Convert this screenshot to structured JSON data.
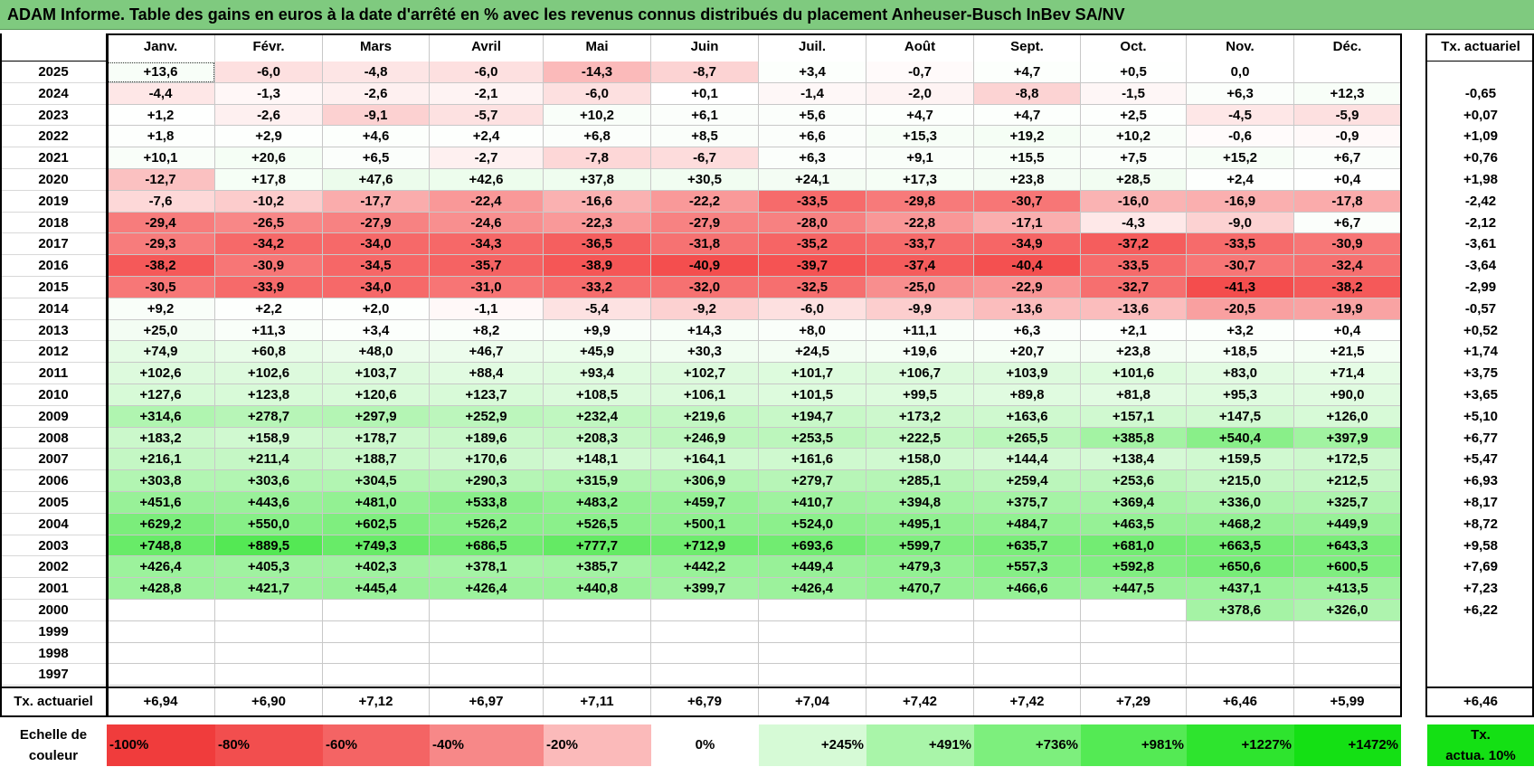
{
  "title": "ADAM Informe. Table des gains en euros à la date d'arrêté en % avec les revenus connus distribués du placement Anheuser-Busch InBev SA/NV",
  "months": [
    "Janv.",
    "Févr.",
    "Mars",
    "Avril",
    "Mai",
    "Juin",
    "Juil.",
    "Août",
    "Sept.",
    "Oct.",
    "Nov.",
    "Déc."
  ],
  "annual_header": "Tx. actuariel",
  "rows": [
    {
      "year": "2025",
      "values": [
        "+13,6",
        "-6,0",
        "-4,8",
        "-6,0",
        "-14,3",
        "-8,7",
        "+3,4",
        "-0,7",
        "+4,7",
        "+0,5",
        "0,0",
        ""
      ],
      "annual": ""
    },
    {
      "year": "2024",
      "values": [
        "-4,4",
        "-1,3",
        "-2,6",
        "-2,1",
        "-6,0",
        "+0,1",
        "-1,4",
        "-2,0",
        "-8,8",
        "-1,5",
        "+6,3",
        "+12,3"
      ],
      "annual": "-0,65"
    },
    {
      "year": "2023",
      "values": [
        "+1,2",
        "-2,6",
        "-9,1",
        "-5,7",
        "+10,2",
        "+6,1",
        "+5,6",
        "+4,7",
        "+4,7",
        "+2,5",
        "-4,5",
        "-5,9"
      ],
      "annual": "+0,07"
    },
    {
      "year": "2022",
      "values": [
        "+1,8",
        "+2,9",
        "+4,6",
        "+2,4",
        "+6,8",
        "+8,5",
        "+6,6",
        "+15,3",
        "+19,2",
        "+10,2",
        "-0,6",
        "-0,9"
      ],
      "annual": "+1,09"
    },
    {
      "year": "2021",
      "values": [
        "+10,1",
        "+20,6",
        "+6,5",
        "-2,7",
        "-7,8",
        "-6,7",
        "+6,3",
        "+9,1",
        "+15,5",
        "+7,5",
        "+15,2",
        "+6,7"
      ],
      "annual": "+0,76"
    },
    {
      "year": "2020",
      "values": [
        "-12,7",
        "+17,8",
        "+47,6",
        "+42,6",
        "+37,8",
        "+30,5",
        "+24,1",
        "+17,3",
        "+23,8",
        "+28,5",
        "+2,4",
        "+0,4"
      ],
      "annual": "+1,98"
    },
    {
      "year": "2019",
      "values": [
        "-7,6",
        "-10,2",
        "-17,7",
        "-22,4",
        "-16,6",
        "-22,2",
        "-33,5",
        "-29,8",
        "-30,7",
        "-16,0",
        "-16,9",
        "-17,8"
      ],
      "annual": "-2,42"
    },
    {
      "year": "2018",
      "values": [
        "-29,4",
        "-26,5",
        "-27,9",
        "-24,6",
        "-22,3",
        "-27,9",
        "-28,0",
        "-22,8",
        "-17,1",
        "-4,3",
        "-9,0",
        "+6,7"
      ],
      "annual": "-2,12"
    },
    {
      "year": "2017",
      "values": [
        "-29,3",
        "-34,2",
        "-34,0",
        "-34,3",
        "-36,5",
        "-31,8",
        "-35,2",
        "-33,7",
        "-34,9",
        "-37,2",
        "-33,5",
        "-30,9"
      ],
      "annual": "-3,61"
    },
    {
      "year": "2016",
      "values": [
        "-38,2",
        "-30,9",
        "-34,5",
        "-35,7",
        "-38,9",
        "-40,9",
        "-39,7",
        "-37,4",
        "-40,4",
        "-33,5",
        "-30,7",
        "-32,4"
      ],
      "annual": "-3,64"
    },
    {
      "year": "2015",
      "values": [
        "-30,5",
        "-33,9",
        "-34,0",
        "-31,0",
        "-33,2",
        "-32,0",
        "-32,5",
        "-25,0",
        "-22,9",
        "-32,7",
        "-41,3",
        "-38,2"
      ],
      "annual": "-2,99"
    },
    {
      "year": "2014",
      "values": [
        "+9,2",
        "+2,2",
        "+2,0",
        "-1,1",
        "-5,4",
        "-9,2",
        "-6,0",
        "-9,9",
        "-13,6",
        "-13,6",
        "-20,5",
        "-19,9"
      ],
      "annual": "-0,57"
    },
    {
      "year": "2013",
      "values": [
        "+25,0",
        "+11,3",
        "+3,4",
        "+8,2",
        "+9,9",
        "+14,3",
        "+8,0",
        "+11,1",
        "+6,3",
        "+2,1",
        "+3,2",
        "+0,4"
      ],
      "annual": "+0,52"
    },
    {
      "year": "2012",
      "values": [
        "+74,9",
        "+60,8",
        "+48,0",
        "+46,7",
        "+45,9",
        "+30,3",
        "+24,5",
        "+19,6",
        "+20,7",
        "+23,8",
        "+18,5",
        "+21,5"
      ],
      "annual": "+1,74"
    },
    {
      "year": "2011",
      "values": [
        "+102,6",
        "+102,6",
        "+103,7",
        "+88,4",
        "+93,4",
        "+102,7",
        "+101,7",
        "+106,7",
        "+103,9",
        "+101,6",
        "+83,0",
        "+71,4"
      ],
      "annual": "+3,75"
    },
    {
      "year": "2010",
      "values": [
        "+127,6",
        "+123,8",
        "+120,6",
        "+123,7",
        "+108,5",
        "+106,1",
        "+101,5",
        "+99,5",
        "+89,8",
        "+81,8",
        "+95,3",
        "+90,0"
      ],
      "annual": "+3,65"
    },
    {
      "year": "2009",
      "values": [
        "+314,6",
        "+278,7",
        "+297,9",
        "+252,9",
        "+232,4",
        "+219,6",
        "+194,7",
        "+173,2",
        "+163,6",
        "+157,1",
        "+147,5",
        "+126,0"
      ],
      "annual": "+5,10"
    },
    {
      "year": "2008",
      "values": [
        "+183,2",
        "+158,9",
        "+178,7",
        "+189,6",
        "+208,3",
        "+246,9",
        "+253,5",
        "+222,5",
        "+265,5",
        "+385,8",
        "+540,4",
        "+397,9"
      ],
      "annual": "+6,77"
    },
    {
      "year": "2007",
      "values": [
        "+216,1",
        "+211,4",
        "+188,7",
        "+170,6",
        "+148,1",
        "+164,1",
        "+161,6",
        "+158,0",
        "+144,4",
        "+138,4",
        "+159,5",
        "+172,5"
      ],
      "annual": "+5,47"
    },
    {
      "year": "2006",
      "values": [
        "+303,8",
        "+303,6",
        "+304,5",
        "+290,3",
        "+315,9",
        "+306,9",
        "+279,7",
        "+285,1",
        "+259,4",
        "+253,6",
        "+215,0",
        "+212,5"
      ],
      "annual": "+6,93"
    },
    {
      "year": "2005",
      "values": [
        "+451,6",
        "+443,6",
        "+481,0",
        "+533,8",
        "+483,2",
        "+459,7",
        "+410,7",
        "+394,8",
        "+375,7",
        "+369,4",
        "+336,0",
        "+325,7"
      ],
      "annual": "+8,17"
    },
    {
      "year": "2004",
      "values": [
        "+629,2",
        "+550,0",
        "+602,5",
        "+526,2",
        "+526,5",
        "+500,1",
        "+524,0",
        "+495,1",
        "+484,7",
        "+463,5",
        "+468,2",
        "+449,9"
      ],
      "annual": "+8,72"
    },
    {
      "year": "2003",
      "values": [
        "+748,8",
        "+889,5",
        "+749,3",
        "+686,5",
        "+777,7",
        "+712,9",
        "+693,6",
        "+599,7",
        "+635,7",
        "+681,0",
        "+663,5",
        "+643,3"
      ],
      "annual": "+9,58"
    },
    {
      "year": "2002",
      "values": [
        "+426,4",
        "+405,3",
        "+402,3",
        "+378,1",
        "+385,7",
        "+442,2",
        "+449,4",
        "+479,3",
        "+557,3",
        "+592,8",
        "+650,6",
        "+600,5"
      ],
      "annual": "+7,69"
    },
    {
      "year": "2001",
      "values": [
        "+428,8",
        "+421,7",
        "+445,4",
        "+426,4",
        "+440,8",
        "+399,7",
        "+426,4",
        "+470,7",
        "+466,6",
        "+447,5",
        "+437,1",
        "+413,5"
      ],
      "annual": "+7,23"
    },
    {
      "year": "2000",
      "values": [
        "",
        "",
        "",
        "",
        "",
        "",
        "",
        "",
        "",
        "",
        "+378,6",
        "+326,0"
      ],
      "annual": "+6,22"
    },
    {
      "year": "1999",
      "values": [
        "",
        "",
        "",
        "",
        "",
        "",
        "",
        "",
        "",
        "",
        "",
        ""
      ],
      "annual": ""
    },
    {
      "year": "1998",
      "values": [
        "",
        "",
        "",
        "",
        "",
        "",
        "",
        "",
        "",
        "",
        "",
        ""
      ],
      "annual": ""
    },
    {
      "year": "1997",
      "values": [
        "",
        "",
        "",
        "",
        "",
        "",
        "",
        "",
        "",
        "",
        "",
        ""
      ],
      "annual": ""
    }
  ],
  "footer": {
    "label": "Tx. actuariel",
    "values": [
      "+6,94",
      "+6,90",
      "+7,12",
      "+6,97",
      "+7,11",
      "+6,79",
      "+7,04",
      "+7,42",
      "+7,42",
      "+7,29",
      "+6,46",
      "+5,99"
    ],
    "annual": "+6,46"
  },
  "legend": {
    "label_line1": "Echelle de",
    "label_line2": "couleur",
    "items": [
      {
        "text": "-100%",
        "color": "#f03c3c",
        "align": "left"
      },
      {
        "text": "-80%",
        "color": "#f24e4e",
        "align": "left"
      },
      {
        "text": "-60%",
        "color": "#f46464",
        "align": "left"
      },
      {
        "text": "-40%",
        "color": "#f78888",
        "align": "left"
      },
      {
        "text": "-20%",
        "color": "#fbbaba",
        "align": "left"
      },
      {
        "text": "0%",
        "color": "#ffffff",
        "align": "center"
      },
      {
        "text": "+245%",
        "color": "#d6fad6",
        "align": "right"
      },
      {
        "text": "+491%",
        "color": "#a9f5a9",
        "align": "right"
      },
      {
        "text": "+736%",
        "color": "#7def7d",
        "align": "right"
      },
      {
        "text": "+981%",
        "color": "#54ea54",
        "align": "right"
      },
      {
        "text": "+1227%",
        "color": "#2ee42e",
        "align": "right"
      },
      {
        "text": "+1472%",
        "color": "#14e014",
        "align": "right"
      }
    ],
    "actua_line1": "Tx.",
    "actua_line2": "actua. 10%",
    "actua_color": "#14e014"
  },
  "colors": {
    "title_bg": "#7fca7f",
    "negative": "#f03c3c",
    "positive": "#14e014"
  }
}
